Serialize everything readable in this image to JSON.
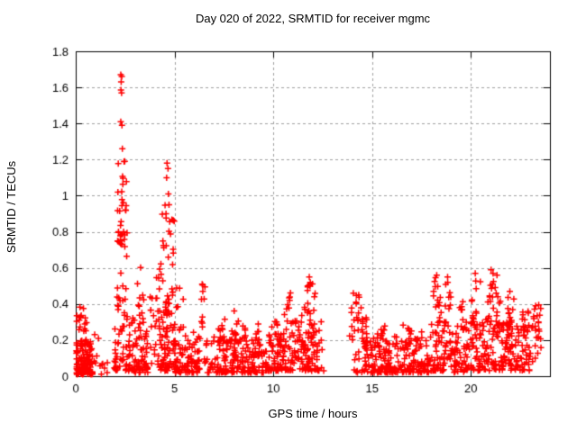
{
  "page": {
    "background": "#ffffff"
  },
  "chart_data": {
    "type": "scatter",
    "title": "Day 020 of 2022, SRMTID for receiver mgmc",
    "xlabel": "GPS time / hours",
    "ylabel": "SRMTID / TECUs",
    "xlim": [
      0,
      24
    ],
    "ylim": [
      0,
      1.8
    ],
    "xticks": [
      {
        "label": "0",
        "value": 0
      },
      {
        "label": "5",
        "value": 5
      },
      {
        "label": "10",
        "value": 10
      },
      {
        "label": "15",
        "value": 15
      },
      {
        "label": "20",
        "value": 20
      }
    ],
    "yticks": [
      {
        "label": "0",
        "value": 0
      },
      {
        "label": "0.2",
        "value": 0.2
      },
      {
        "label": "0.4",
        "value": 0.4
      },
      {
        "label": "0.6",
        "value": 0.6
      },
      {
        "label": "0.8",
        "value": 0.8
      },
      {
        "label": "1",
        "value": 1
      },
      {
        "label": "1.2",
        "value": 1.2
      },
      {
        "label": "1.4",
        "value": 1.4
      },
      {
        "label": "1.6",
        "value": 1.6
      },
      {
        "label": "1.8",
        "value": 1.8
      }
    ],
    "grid": true,
    "legend": "none",
    "marker": {
      "shape": "plus",
      "color": "#ff0000",
      "size": 7
    },
    "axis_color": "#000000",
    "grid_color": "#a0a0a0",
    "data_gap_hours": [
      12.5,
      13.85
    ],
    "max_value_tecus": 1.67,
    "seed": 20220120,
    "density_clusters": [
      {
        "t0": 0.03,
        "t1": 0.85,
        "n": 110,
        "y0": 0.01,
        "y1": 0.2,
        "bias": 1.7
      },
      {
        "t0": 0.03,
        "t1": 0.55,
        "n": 24,
        "y0": 0.16,
        "y1": 0.39,
        "bias": 1.2
      },
      {
        "t0": 0.9,
        "t1": 1.9,
        "n": 10,
        "y0": 0.01,
        "y1": 0.12,
        "bias": 1.5
      },
      {
        "t0": 1.95,
        "t1": 2.75,
        "n": 60,
        "y0": 0.03,
        "y1": 0.45,
        "bias": 1.6
      },
      {
        "t0": 2.1,
        "t1": 2.6,
        "n": 40,
        "y0": 0.45,
        "y1": 1.2,
        "bias": 1.0
      },
      {
        "t0": 2.7,
        "t1": 3.65,
        "n": 75,
        "y0": 0.02,
        "y1": 0.4,
        "bias": 1.8
      },
      {
        "t0": 3.05,
        "t1": 3.55,
        "n": 7,
        "y0": 0.35,
        "y1": 0.65,
        "bias": 1.2
      },
      {
        "t0": 3.7,
        "t1": 4.1,
        "n": 14,
        "y0": 0.05,
        "y1": 0.45,
        "bias": 1.4
      },
      {
        "t0": 4.05,
        "t1": 4.35,
        "n": 8,
        "y0": 0.35,
        "y1": 0.66,
        "bias": 1.2
      },
      {
        "t0": 4.15,
        "t1": 5.05,
        "n": 85,
        "y0": 0.03,
        "y1": 0.4,
        "bias": 1.5
      },
      {
        "t0": 4.35,
        "t1": 5.0,
        "n": 28,
        "y0": 0.4,
        "y1": 0.95,
        "bias": 1.1
      },
      {
        "t0": 5.0,
        "t1": 6.3,
        "n": 90,
        "y0": 0.02,
        "y1": 0.28,
        "bias": 1.9
      },
      {
        "t0": 5.1,
        "t1": 5.45,
        "n": 6,
        "y0": 0.25,
        "y1": 0.5,
        "bias": 1.1
      },
      {
        "t0": 6.3,
        "t1": 6.55,
        "n": 8,
        "y0": 0.25,
        "y1": 0.52,
        "bias": 1.0
      },
      {
        "t0": 6.5,
        "t1": 9.6,
        "n": 175,
        "y0": 0.02,
        "y1": 0.22,
        "bias": 2.0
      },
      {
        "t0": 7.2,
        "t1": 7.6,
        "n": 9,
        "y0": 0.18,
        "y1": 0.34,
        "bias": 1.2
      },
      {
        "t0": 7.85,
        "t1": 8.25,
        "n": 10,
        "y0": 0.18,
        "y1": 0.4,
        "bias": 1.2
      },
      {
        "t0": 8.4,
        "t1": 8.65,
        "n": 5,
        "y0": 0.18,
        "y1": 0.3,
        "bias": 1.0
      },
      {
        "t0": 9.0,
        "t1": 9.3,
        "n": 6,
        "y0": 0.18,
        "y1": 0.3,
        "bias": 1.0
      },
      {
        "t0": 9.6,
        "t1": 10.45,
        "n": 60,
        "y0": 0.03,
        "y1": 0.25,
        "bias": 1.7
      },
      {
        "t0": 9.9,
        "t1": 10.25,
        "n": 6,
        "y0": 0.2,
        "y1": 0.33,
        "bias": 1.0
      },
      {
        "t0": 10.45,
        "t1": 12.3,
        "n": 115,
        "y0": 0.03,
        "y1": 0.3,
        "bias": 1.6
      },
      {
        "t0": 10.5,
        "t1": 11.45,
        "n": 14,
        "y0": 0.25,
        "y1": 0.47,
        "bias": 1.1
      },
      {
        "t0": 11.5,
        "t1": 12.15,
        "n": 18,
        "y0": 0.28,
        "y1": 0.52,
        "bias": 1.0
      },
      {
        "t0": 12.15,
        "t1": 12.52,
        "n": 12,
        "y0": 0.03,
        "y1": 0.33,
        "bias": 1.4
      },
      {
        "t0": 13.85,
        "t1": 14.75,
        "n": 35,
        "y0": 0.02,
        "y1": 0.35,
        "bias": 1.4
      },
      {
        "t0": 13.9,
        "t1": 14.45,
        "n": 9,
        "y0": 0.3,
        "y1": 0.45,
        "bias": 1.0
      },
      {
        "t0": 14.6,
        "t1": 17.9,
        "n": 200,
        "y0": 0.02,
        "y1": 0.22,
        "bias": 1.9
      },
      {
        "t0": 15.25,
        "t1": 15.65,
        "n": 8,
        "y0": 0.16,
        "y1": 0.3,
        "bias": 1.1
      },
      {
        "t0": 16.55,
        "t1": 17.0,
        "n": 10,
        "y0": 0.16,
        "y1": 0.3,
        "bias": 1.1
      },
      {
        "t0": 17.3,
        "t1": 17.55,
        "n": 5,
        "y0": 0.16,
        "y1": 0.28,
        "bias": 1.0
      },
      {
        "t0": 17.9,
        "t1": 19.05,
        "n": 65,
        "y0": 0.03,
        "y1": 0.3,
        "bias": 1.5
      },
      {
        "t0": 18.1,
        "t1": 18.5,
        "n": 16,
        "y0": 0.28,
        "y1": 0.56,
        "bias": 1.0
      },
      {
        "t0": 18.6,
        "t1": 19.0,
        "n": 12,
        "y0": 0.25,
        "y1": 0.53,
        "bias": 1.0
      },
      {
        "t0": 19.05,
        "t1": 19.7,
        "n": 40,
        "y0": 0.02,
        "y1": 0.28,
        "bias": 1.6
      },
      {
        "t0": 19.3,
        "t1": 19.6,
        "n": 8,
        "y0": 0.26,
        "y1": 0.47,
        "bias": 1.0
      },
      {
        "t0": 19.7,
        "t1": 20.6,
        "n": 55,
        "y0": 0.03,
        "y1": 0.3,
        "bias": 1.5
      },
      {
        "t0": 20.0,
        "t1": 20.5,
        "n": 14,
        "y0": 0.28,
        "y1": 0.53,
        "bias": 1.0
      },
      {
        "t0": 20.6,
        "t1": 21.6,
        "n": 65,
        "y0": 0.03,
        "y1": 0.33,
        "bias": 1.4
      },
      {
        "t0": 20.85,
        "t1": 21.5,
        "n": 20,
        "y0": 0.3,
        "y1": 0.55,
        "bias": 1.0
      },
      {
        "t0": 21.6,
        "t1": 22.3,
        "n": 48,
        "y0": 0.03,
        "y1": 0.3,
        "bias": 1.4
      },
      {
        "t0": 21.8,
        "t1": 22.2,
        "n": 12,
        "y0": 0.26,
        "y1": 0.46,
        "bias": 1.0
      },
      {
        "t0": 22.3,
        "t1": 23.0,
        "n": 42,
        "y0": 0.03,
        "y1": 0.28,
        "bias": 1.4
      },
      {
        "t0": 22.55,
        "t1": 22.95,
        "n": 10,
        "y0": 0.24,
        "y1": 0.4,
        "bias": 1.0
      },
      {
        "t0": 23.0,
        "t1": 23.55,
        "n": 26,
        "y0": 0.05,
        "y1": 0.4,
        "bias": 1.1
      }
    ],
    "peak_points": [
      [
        0.96,
        0.23
      ],
      [
        1.15,
        0.21
      ],
      [
        2.28,
        1.67
      ],
      [
        2.33,
        1.66
      ],
      [
        2.3,
        1.63
      ],
      [
        2.29,
        1.585
      ],
      [
        2.32,
        1.57
      ],
      [
        2.28,
        1.41
      ],
      [
        2.34,
        1.39
      ],
      [
        2.36,
        1.26
      ],
      [
        4.62,
        1.18
      ],
      [
        4.67,
        1.15
      ],
      [
        4.6,
        1.1
      ],
      [
        4.69,
        1.01
      ],
      [
        4.72,
        0.95
      ],
      [
        4.57,
        0.9
      ],
      [
        6.4,
        0.51
      ],
      [
        6.43,
        0.47
      ],
      [
        11.82,
        0.55
      ],
      [
        11.87,
        0.52
      ],
      [
        11.74,
        0.5
      ],
      [
        12.55,
        0.03
      ],
      [
        14.05,
        0.46
      ],
      [
        14.32,
        0.45
      ],
      [
        18.27,
        0.56
      ],
      [
        18.82,
        0.55
      ],
      [
        20.22,
        0.57
      ],
      [
        21.02,
        0.59
      ],
      [
        21.12,
        0.57
      ],
      [
        21.32,
        0.56
      ],
      [
        21.97,
        0.47
      ]
    ]
  }
}
